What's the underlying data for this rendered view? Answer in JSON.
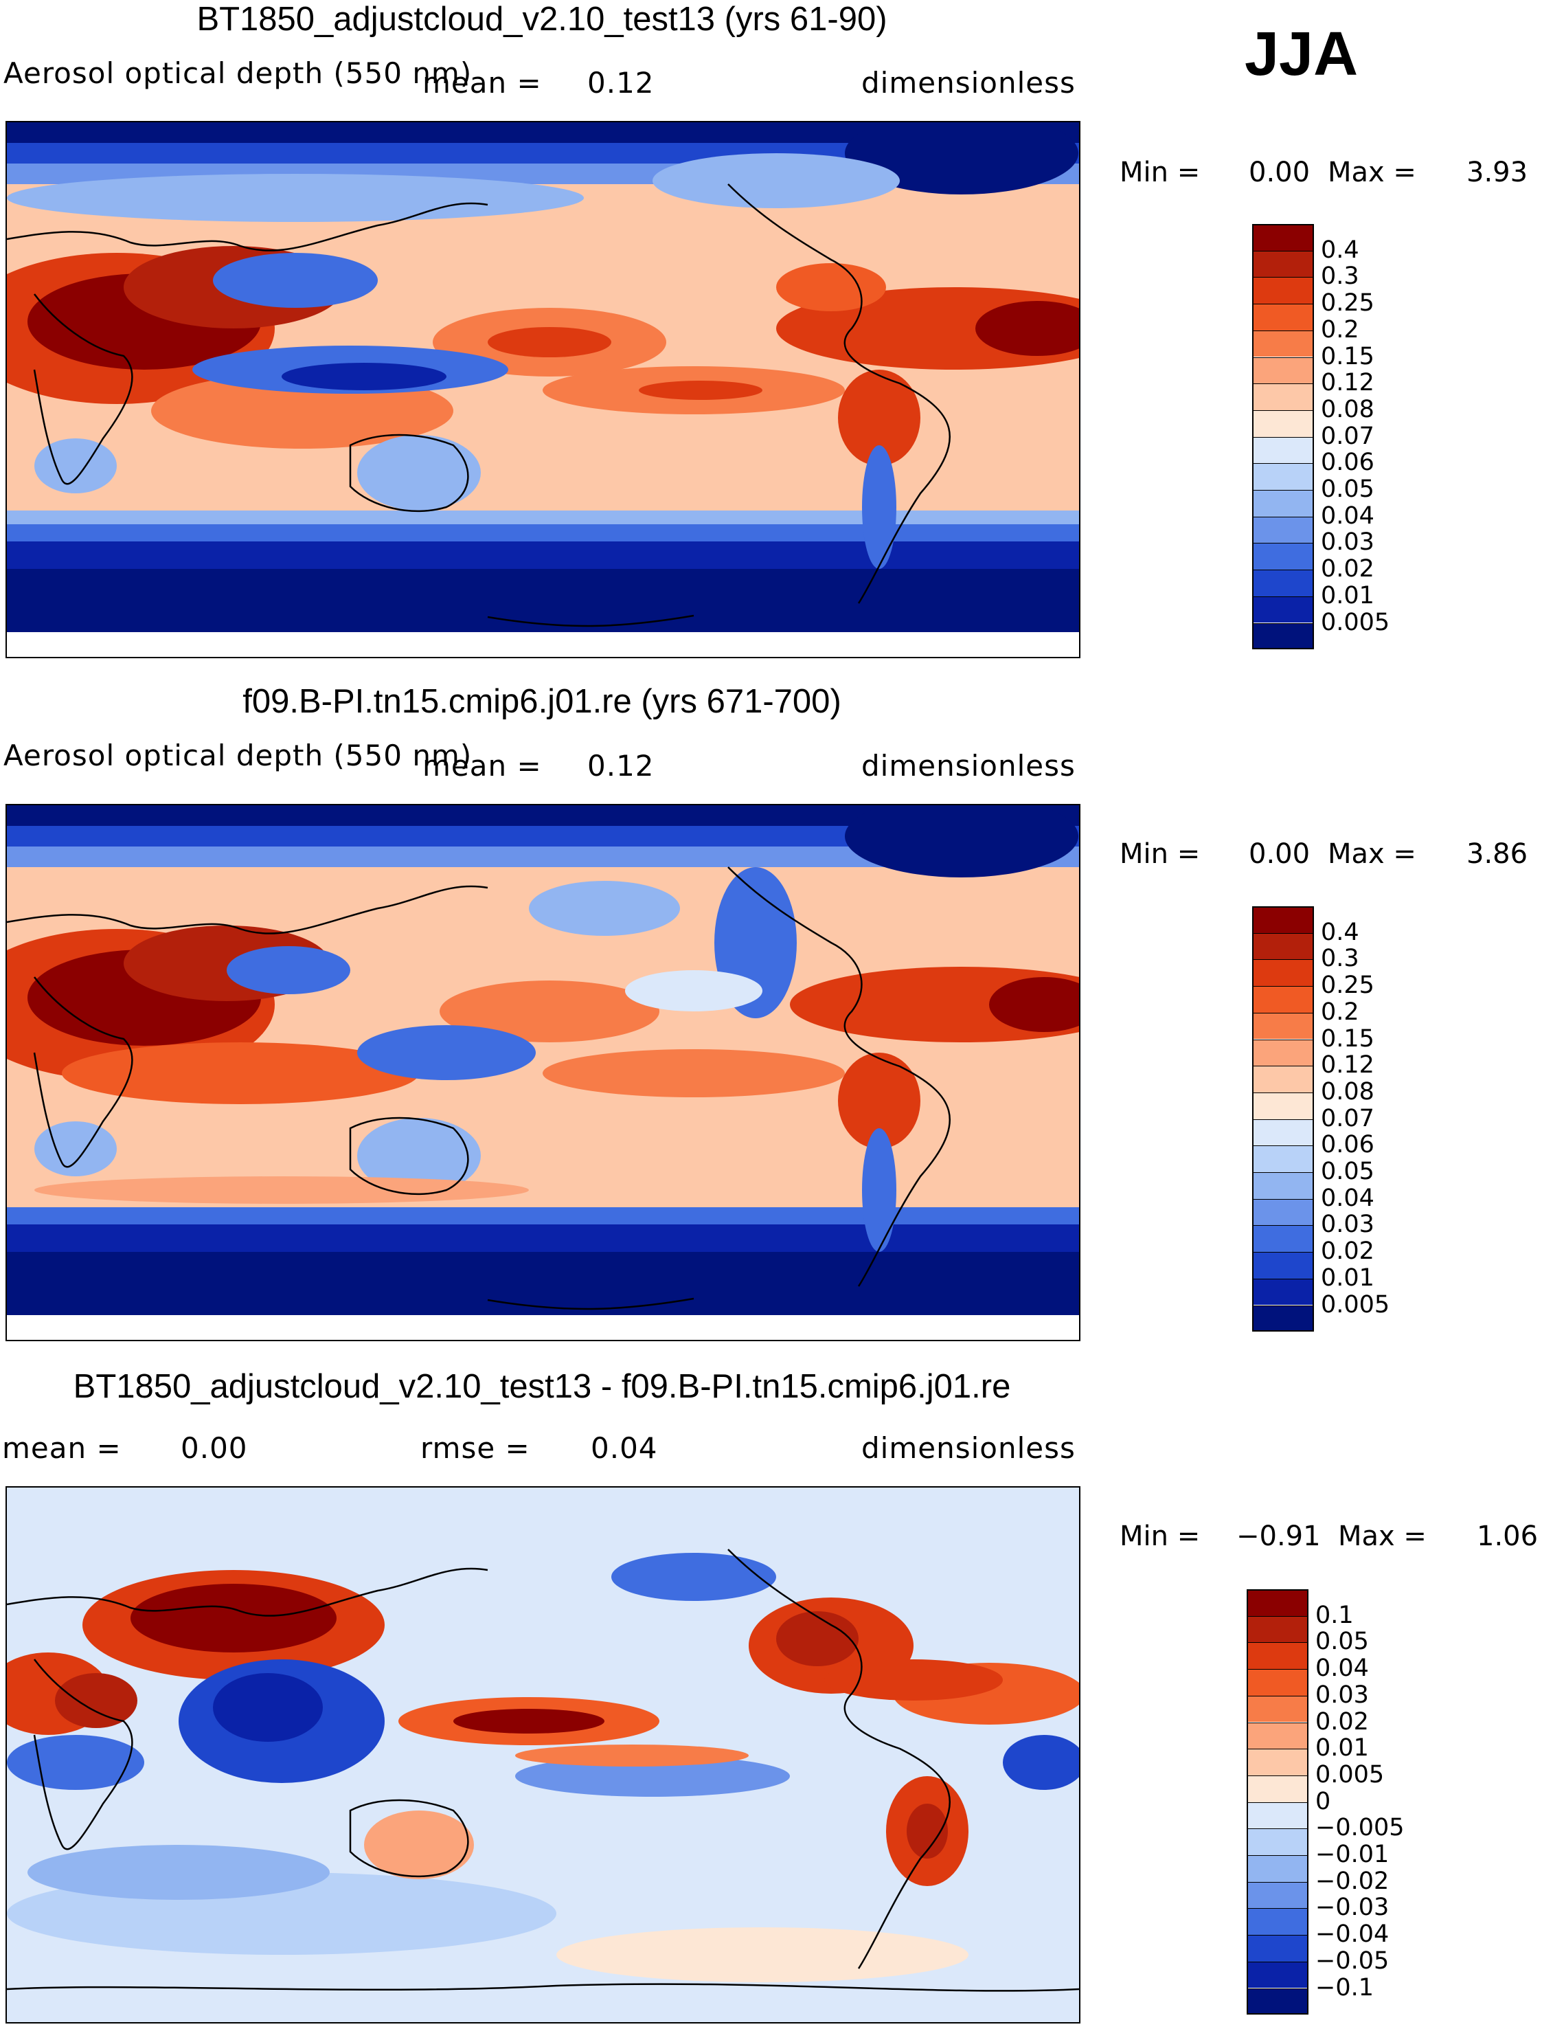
{
  "season": "JJA",
  "panels": [
    {
      "id": "test",
      "title": "BT1850_adjustcloud_v2.10_test13 (yrs 61-90)",
      "variable": "Aerosol optical depth (550 nm)",
      "left_stat_label": "",
      "left_stat_value": "",
      "stat_label": "mean =",
      "stat_value": "0.12",
      "units": "dimensionless",
      "min_label": "Min =",
      "min_value": "0.00",
      "max_label": "Max =",
      "max_value": "3.93",
      "contour_levels": [
        "0.4",
        "0.3",
        "0.25",
        "0.2",
        "0.15",
        "0.12",
        "0.08",
        "0.07",
        "0.06",
        "0.05",
        "0.04",
        "0.03",
        "0.02",
        "0.01",
        "0.005"
      ],
      "colors": [
        "#8b0000",
        "#b3200b",
        "#dd3a10",
        "#f05a24",
        "#f77c48",
        "#fba47b",
        "#fdc8a8",
        "#fde7d5",
        "#dbe8fa",
        "#b8d2f8",
        "#92b5f1",
        "#6b93ea",
        "#3f6de0",
        "#1e46cc",
        "#0a22a8",
        "#00127c"
      ]
    },
    {
      "id": "control",
      "title": "f09.B-PI.tn15.cmip6.j01.re (yrs 671-700)",
      "variable": "Aerosol optical depth (550 nm)",
      "left_stat_label": "",
      "left_stat_value": "",
      "stat_label": "mean =",
      "stat_value": "0.12",
      "units": "dimensionless",
      "min_label": "Min =",
      "min_value": "0.00",
      "max_label": "Max =",
      "max_value": "3.86",
      "contour_levels": [
        "0.4",
        "0.3",
        "0.25",
        "0.2",
        "0.15",
        "0.12",
        "0.08",
        "0.07",
        "0.06",
        "0.05",
        "0.04",
        "0.03",
        "0.02",
        "0.01",
        "0.005"
      ],
      "colors": [
        "#8b0000",
        "#b3200b",
        "#dd3a10",
        "#f05a24",
        "#f77c48",
        "#fba47b",
        "#fdc8a8",
        "#fde7d5",
        "#dbe8fa",
        "#b8d2f8",
        "#92b5f1",
        "#6b93ea",
        "#3f6de0",
        "#1e46cc",
        "#0a22a8",
        "#00127c"
      ]
    },
    {
      "id": "diff",
      "title": "BT1850_adjustcloud_v2.10_test13 - f09.B-PI.tn15.cmip6.j01.re",
      "variable": "",
      "left_stat_label": "mean =",
      "left_stat_value": "0.00",
      "stat_label": "rmse =",
      "stat_value": "0.04",
      "units": "dimensionless",
      "min_label": "Min =",
      "min_value": "−0.91",
      "max_label": "Max =",
      "max_value": "1.06",
      "contour_levels": [
        "0.1",
        "0.05",
        "0.04",
        "0.03",
        "0.02",
        "0.01",
        "0.005",
        "0",
        "−0.005",
        "−0.01",
        "−0.02",
        "−0.03",
        "−0.04",
        "−0.05",
        "−0.1"
      ],
      "colors": [
        "#8b0000",
        "#b3200b",
        "#dd3a10",
        "#f05a24",
        "#f77c48",
        "#fba47b",
        "#fdc8a8",
        "#fde7d5",
        "#dbe8fa",
        "#b8d2f8",
        "#92b5f1",
        "#6b93ea",
        "#3f6de0",
        "#1e46cc",
        "#0a22a8",
        "#00127c"
      ]
    }
  ]
}
